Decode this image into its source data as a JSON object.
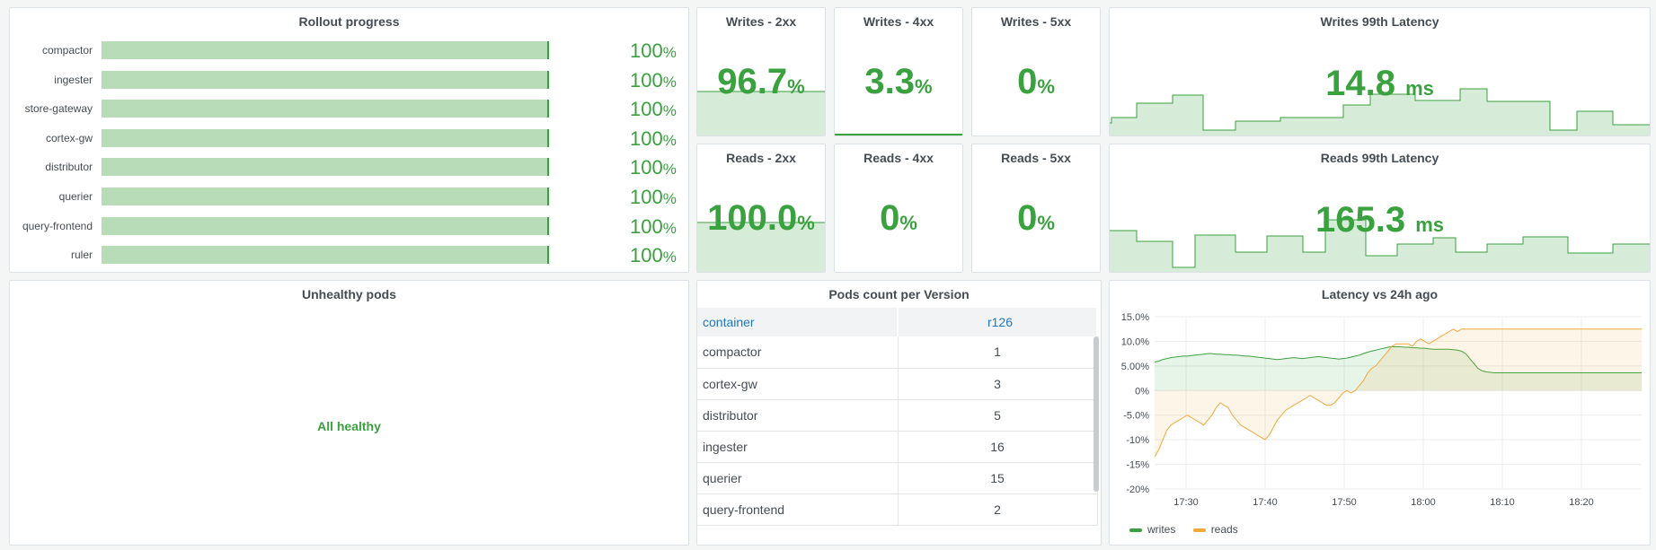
{
  "rollout": {
    "title": "Rollout progress",
    "rows": [
      {
        "name": "compactor",
        "value": "100",
        "unit": "%"
      },
      {
        "name": "ingester",
        "value": "100",
        "unit": "%"
      },
      {
        "name": "store-gateway",
        "value": "100",
        "unit": "%"
      },
      {
        "name": "cortex-gw",
        "value": "100",
        "unit": "%"
      },
      {
        "name": "distributor",
        "value": "100",
        "unit": "%"
      },
      {
        "name": "querier",
        "value": "100",
        "unit": "%"
      },
      {
        "name": "query-frontend",
        "value": "100",
        "unit": "%"
      },
      {
        "name": "ruler",
        "value": "100",
        "unit": "%"
      }
    ]
  },
  "stats": {
    "writes_2xx": {
      "title": "Writes - 2xx",
      "value": "96.7",
      "unit": "%"
    },
    "writes_4xx": {
      "title": "Writes - 4xx",
      "value": "3.3",
      "unit": "%"
    },
    "writes_5xx": {
      "title": "Writes - 5xx",
      "value": "0",
      "unit": "%"
    },
    "reads_2xx": {
      "title": "Reads - 2xx",
      "value": "100.0",
      "unit": "%"
    },
    "reads_4xx": {
      "title": "Reads - 4xx",
      "value": "0",
      "unit": "%"
    },
    "reads_5xx": {
      "title": "Reads - 5xx",
      "value": "0",
      "unit": "%"
    },
    "writes_latency": {
      "title": "Writes 99th Latency",
      "value": "14.8",
      "unit": "ms"
    },
    "reads_latency": {
      "title": "Reads 99th Latency",
      "value": "165.3",
      "unit": "ms"
    }
  },
  "unhealthy": {
    "title": "Unhealthy pods",
    "message": "All healthy"
  },
  "pods_table": {
    "title": "Pods count per Version",
    "columns": [
      "container",
      "r126"
    ],
    "rows": [
      [
        "compactor",
        "1"
      ],
      [
        "cortex-gw",
        "3"
      ],
      [
        "distributor",
        "5"
      ],
      [
        "ingester",
        "16"
      ],
      [
        "querier",
        "15"
      ],
      [
        "query-frontend",
        "2"
      ]
    ]
  },
  "latency_chart": {
    "title": "Latency vs 24h ago",
    "legend": [
      "writes",
      "reads"
    ]
  },
  "colors": {
    "green": "#3aa13f",
    "orange": "#f2a93b",
    "fill_green": "#d7ecd8"
  },
  "chart_data": {
    "type": "line",
    "title": "Latency vs 24h ago",
    "y_ticks": [
      "15.0%",
      "10.0%",
      "5.00%",
      "0%",
      "-5.0%",
      "-10%",
      "-15%",
      "-20%"
    ],
    "x_ticks": [
      "17:30",
      "17:40",
      "17:50",
      "18:00",
      "18:10",
      "18:20"
    ],
    "ylim": [
      -20,
      15
    ],
    "series": [
      {
        "name": "writes",
        "x": [
          0,
          1,
          2,
          3,
          4,
          5,
          6,
          7,
          8,
          9,
          10,
          11,
          12,
          13,
          14,
          15,
          16,
          17,
          18,
          19,
          20,
          21,
          22,
          23,
          24,
          25,
          26,
          27,
          28,
          29,
          30,
          31,
          32,
          33,
          34,
          35,
          36,
          37,
          38,
          39,
          40,
          41,
          42,
          43,
          44,
          45,
          46,
          47,
          48,
          49,
          50,
          51,
          52,
          53,
          54,
          55,
          56,
          57,
          58,
          59,
          60,
          61,
          62,
          63,
          64,
          65,
          66,
          67,
          68,
          69,
          70,
          71,
          72,
          73,
          74,
          75,
          76,
          77,
          78,
          79,
          80,
          81,
          82,
          83,
          84,
          85,
          86,
          87,
          88,
          89,
          90,
          91,
          92,
          93,
          94,
          95,
          96,
          97,
          98,
          99,
          100,
          101,
          102,
          103,
          104,
          105,
          106,
          107,
          108,
          109,
          110,
          111,
          112,
          113,
          114,
          115,
          116,
          117,
          118,
          119
        ],
        "values": [
          5.8,
          6.0,
          6.3,
          6.5,
          6.7,
          6.8,
          6.9,
          7.0,
          7.0,
          7.1,
          7.2,
          7.3,
          7.4,
          7.5,
          7.5,
          7.4,
          7.4,
          7.3,
          7.3,
          7.2,
          7.2,
          7.1,
          7.0,
          7.0,
          6.9,
          6.8,
          6.7,
          6.6,
          6.5,
          6.4,
          6.3,
          6.4,
          6.5,
          6.6,
          6.7,
          6.6,
          6.5,
          6.6,
          6.7,
          6.8,
          6.9,
          6.8,
          6.7,
          6.6,
          6.5,
          6.4,
          6.5,
          6.6,
          6.8,
          7.0,
          7.2,
          7.5,
          7.8,
          8.0,
          8.2,
          8.4,
          8.6,
          8.8,
          8.9,
          8.9,
          8.9,
          8.8,
          8.8,
          8.7,
          8.7,
          8.6,
          8.6,
          8.5,
          8.4,
          8.4,
          8.4,
          8.4,
          8.4,
          8.3,
          8.2,
          8.0,
          7.5,
          6.5,
          5.5,
          4.5,
          4.0,
          3.8,
          3.7,
          3.6,
          3.6,
          3.6,
          3.6,
          3.6,
          3.6,
          3.6,
          3.6,
          3.6,
          3.6,
          3.6,
          3.6,
          3.6,
          3.6,
          3.6,
          3.6,
          3.6,
          3.6,
          3.6,
          3.6,
          3.6,
          3.6,
          3.6,
          3.6,
          3.6,
          3.6,
          3.6,
          3.6,
          3.6,
          3.6,
          3.6,
          3.6,
          3.6,
          3.6,
          3.6,
          3.6,
          3.6
        ]
      },
      {
        "name": "reads",
        "x": [
          0,
          1,
          2,
          3,
          4,
          5,
          6,
          7,
          8,
          9,
          10,
          11,
          12,
          13,
          14,
          15,
          16,
          17,
          18,
          19,
          20,
          21,
          22,
          23,
          24,
          25,
          26,
          27,
          28,
          29,
          30,
          31,
          32,
          33,
          34,
          35,
          36,
          37,
          38,
          39,
          40,
          41,
          42,
          43,
          44,
          45,
          46,
          47,
          48,
          49,
          50,
          51,
          52,
          53,
          54,
          55,
          56,
          57,
          58,
          59,
          60,
          61,
          62,
          63,
          64,
          65,
          66,
          67,
          68,
          69,
          70,
          71,
          72,
          73,
          74,
          75,
          76,
          77,
          78,
          79,
          80,
          81,
          82,
          83,
          84,
          85,
          86,
          87,
          88,
          89,
          90,
          91,
          92,
          93,
          94,
          95,
          96,
          97,
          98,
          99,
          100,
          101,
          102,
          103,
          104,
          105,
          106,
          107,
          108,
          109,
          110,
          111,
          112,
          113,
          114,
          115,
          116,
          117,
          118,
          119
        ],
        "values": [
          -13.5,
          -12.0,
          -10.0,
          -8.0,
          -7.0,
          -6.5,
          -6.0,
          -5.5,
          -5.0,
          -5.5,
          -6.0,
          -6.5,
          -7.0,
          -6.0,
          -5.0,
          -3.5,
          -2.5,
          -3.0,
          -3.5,
          -5.0,
          -6.0,
          -7.0,
          -7.5,
          -8.0,
          -8.5,
          -9.0,
          -9.5,
          -10.0,
          -9.0,
          -7.5,
          -6.0,
          -5.0,
          -4.0,
          -3.5,
          -3.0,
          -2.5,
          -2.0,
          -1.5,
          -1.0,
          -1.5,
          -2.0,
          -2.5,
          -3.0,
          -3.0,
          -2.5,
          -1.5,
          -0.5,
          0.0,
          -0.5,
          0.0,
          1.0,
          2.0,
          3.5,
          4.5,
          5.0,
          6.0,
          7.0,
          8.0,
          9.0,
          9.5,
          9.5,
          9.5,
          9.5,
          9.0,
          10.0,
          10.5,
          10.0,
          9.5,
          10.0,
          10.5,
          11.0,
          11.5,
          12.0,
          12.5,
          12.0,
          12.5,
          12.5,
          12.5,
          12.5,
          12.5,
          12.5,
          12.5,
          12.5,
          12.5,
          12.5,
          12.5,
          12.5,
          12.5,
          12.5,
          12.5,
          12.5,
          12.5,
          12.5,
          12.5,
          12.5,
          12.5,
          12.5,
          12.5,
          12.5,
          12.5,
          12.5,
          12.5,
          12.5,
          12.5,
          12.5,
          12.5,
          12.5,
          12.5,
          12.5,
          12.5,
          12.5,
          12.5,
          12.5,
          12.5,
          12.5,
          12.5,
          12.5,
          12.5,
          12.5,
          12.5
        ]
      }
    ]
  }
}
